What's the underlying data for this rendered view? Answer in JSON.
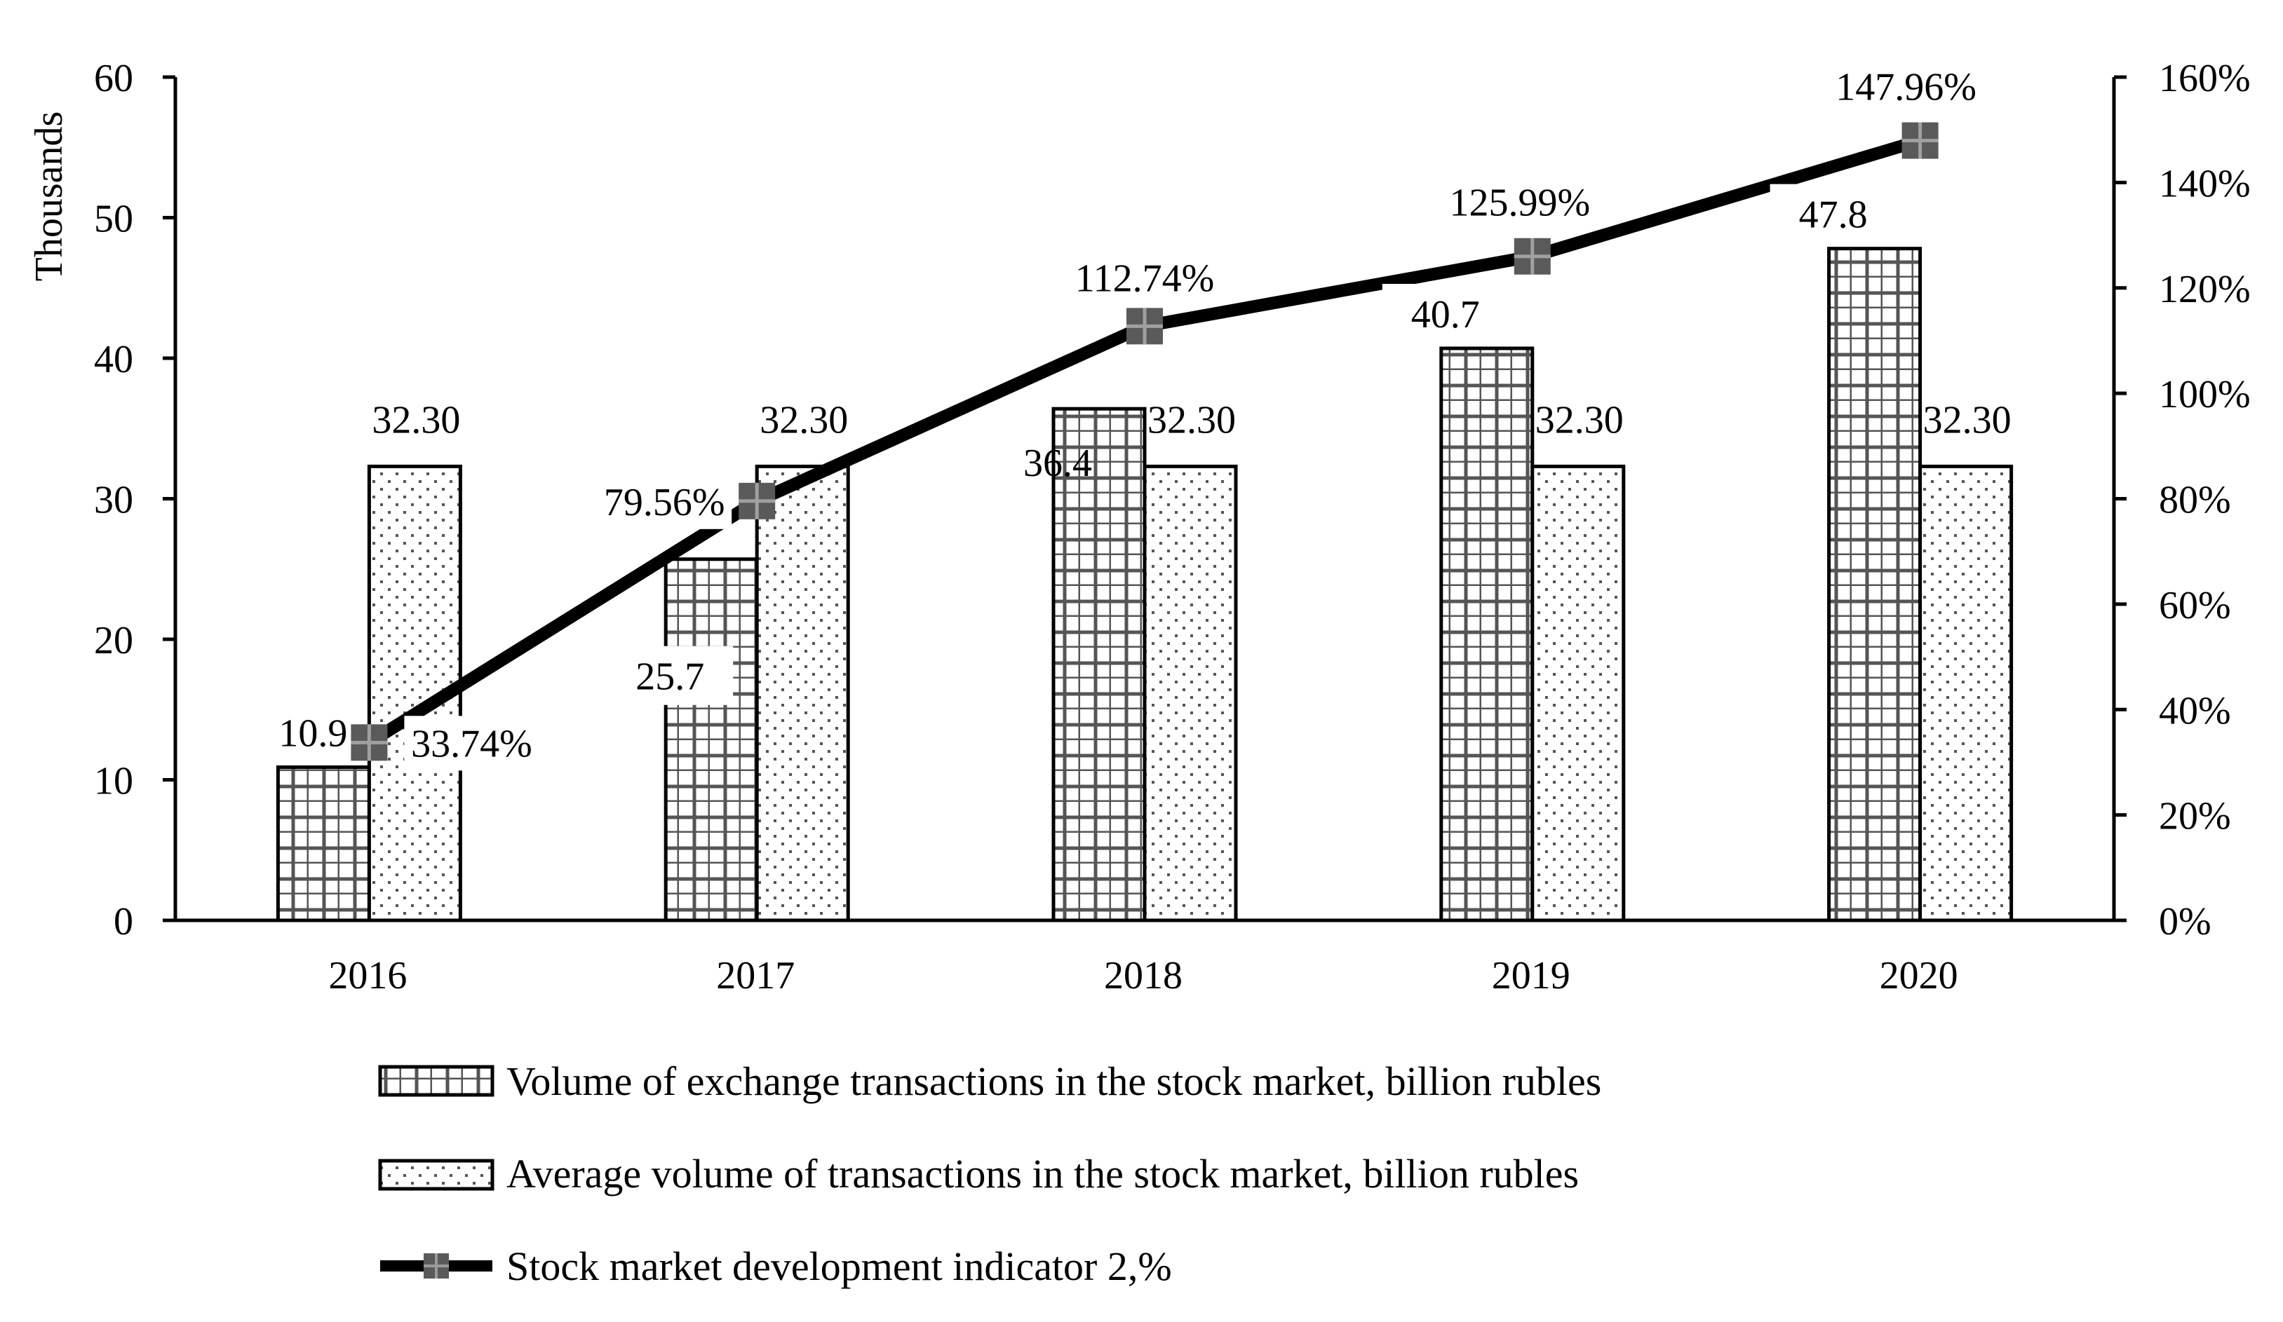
{
  "chart_data": {
    "type": "bar",
    "categories": [
      "2016",
      "2017",
      "2018",
      "2019",
      "2020"
    ],
    "y_left": {
      "label": "Thousands",
      "range": [
        0,
        60
      ],
      "ticks": [
        "0",
        "10",
        "20",
        "30",
        "40",
        "50",
        "60"
      ]
    },
    "y_right": {
      "range": [
        0,
        160
      ],
      "ticks": [
        "0%",
        "20%",
        "40%",
        "60%",
        "80%",
        "100%",
        "120%",
        "140%",
        "160%"
      ]
    },
    "series": [
      {
        "name": "Volume of exchange transactions in the stock market, billion rubles",
        "kind": "bar",
        "pattern": "grid",
        "axis": "left",
        "values": [
          10.9,
          25.7,
          36.4,
          40.7,
          47.8
        ],
        "labels": [
          "10.9",
          "25.7",
          "36.4",
          "40.7",
          "47.8"
        ]
      },
      {
        "name": "Average volume of transactions in the stock market, billion rubles",
        "kind": "bar",
        "pattern": "dots",
        "axis": "left",
        "values": [
          32.3,
          32.3,
          32.3,
          32.3,
          32.3
        ],
        "labels": [
          "32.30",
          "32.30",
          "32.30",
          "32.30",
          "32.30"
        ]
      },
      {
        "name": "Stock market development indicator 2,%",
        "kind": "line",
        "axis": "right",
        "values": [
          33.74,
          79.56,
          112.74,
          125.99,
          147.96
        ],
        "labels": [
          "33.74%",
          "79.56%",
          "112.74%",
          "125.99%",
          "147.96%"
        ]
      }
    ],
    "colors": {
      "line": "#000000",
      "marker": "#5a5a5a",
      "bar_stroke": "#000000",
      "pattern": "#555555"
    },
    "legend_position": "bottom"
  }
}
